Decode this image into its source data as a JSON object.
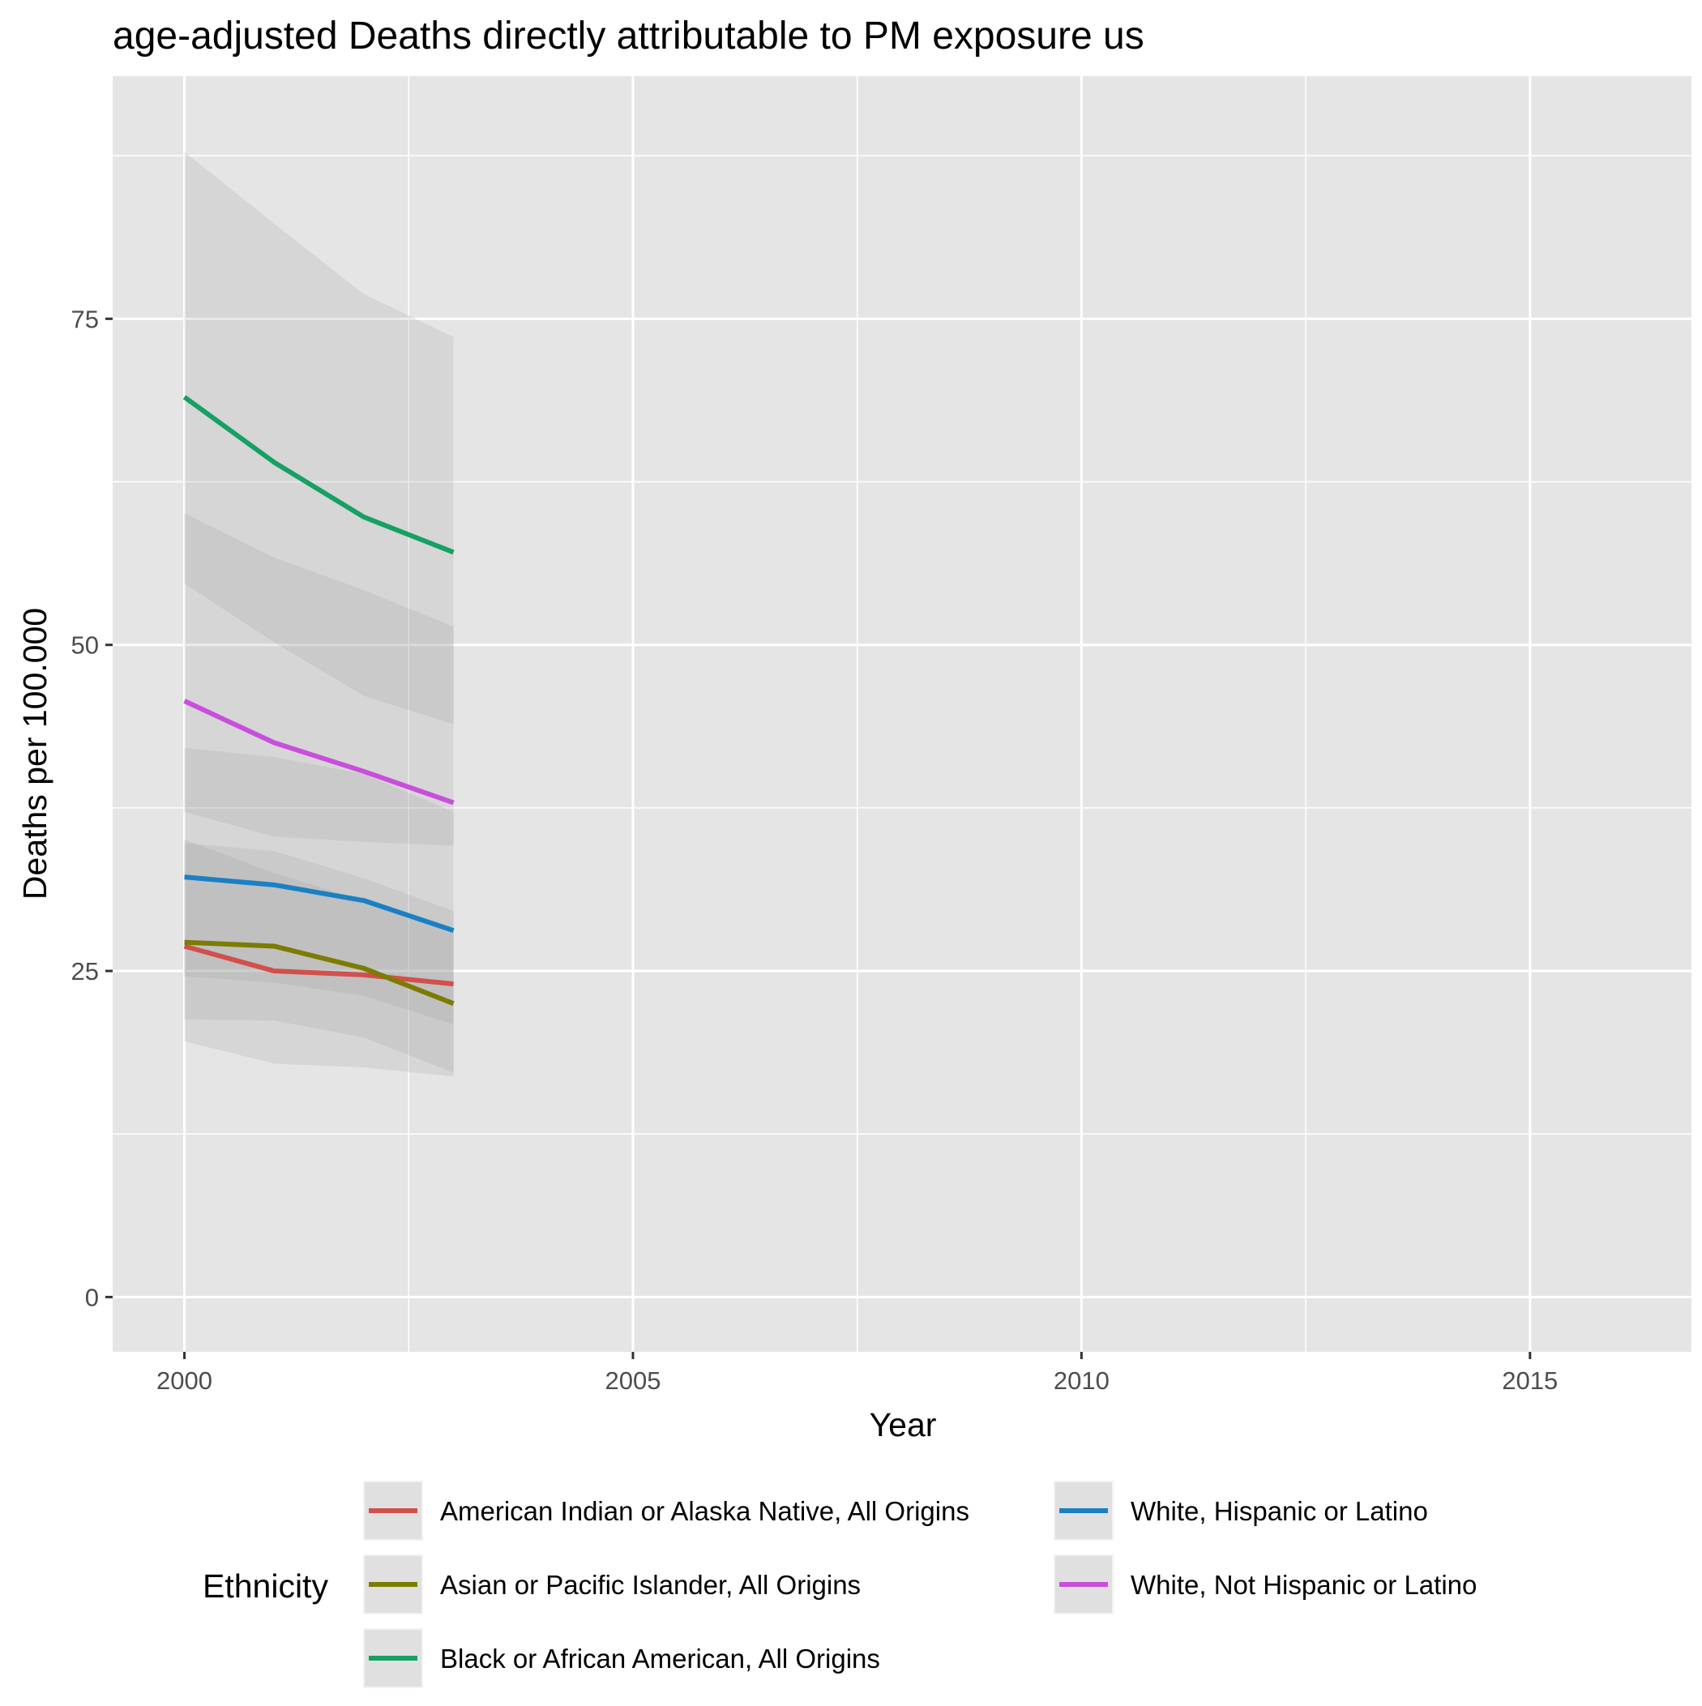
{
  "chart_data": {
    "type": "line",
    "title": "age-adjusted Deaths directly attributable to PM exposure us",
    "xlabel": "Year",
    "ylabel": "Deaths per 100.000",
    "xlim": [
      1999.2,
      2016.8
    ],
    "ylim": [
      -4.2,
      93.6
    ],
    "x_ticks": [
      2000,
      2005,
      2010,
      2015
    ],
    "x_tick_labels": [
      "2000",
      "2005",
      "2010",
      "2015"
    ],
    "y_ticks": [
      0,
      25,
      50,
      75
    ],
    "y_tick_labels": [
      "0",
      "25",
      "50",
      "75"
    ],
    "grid": true,
    "legend": {
      "title": "Ethnicity",
      "position": "bottom",
      "entries": [
        "American Indian or Alaska Native, All Origins",
        "Asian or Pacific Islander, All Origins",
        "Black or African American, All Origins",
        "White, Hispanic or Latino",
        "White, Not Hispanic or Latino"
      ]
    },
    "x": [
      2000,
      2001,
      2002,
      2003
    ],
    "series": [
      {
        "name": "American Indian or Alaska Native, All Origins",
        "color": "#D2504B",
        "values": [
          26.9,
          25.0,
          24.7,
          24.0
        ],
        "lower": [
          19.6,
          17.9,
          17.6,
          16.9
        ],
        "upper": [
          34.8,
          34.2,
          32.1,
          29.6
        ]
      },
      {
        "name": "Asian or Pacific Islander, All Origins",
        "color": "#7C7C00",
        "values": [
          27.2,
          26.9,
          25.2,
          22.5
        ],
        "lower": [
          21.3,
          21.2,
          19.9,
          17.2
        ],
        "upper": [
          35.1,
          32.5,
          30.4,
          28.1
        ]
      },
      {
        "name": "Black or African American, All Origins",
        "color": "#16A064",
        "values": [
          69.0,
          64.0,
          59.8,
          57.1
        ],
        "lower": [
          54.7,
          50.2,
          46.1,
          43.9
        ],
        "upper": [
          87.8,
          82.3,
          76.9,
          73.6
        ]
      },
      {
        "name": "White, Hispanic or Latino",
        "color": "#1A80C4",
        "values": [
          32.2,
          31.6,
          30.4,
          28.1
        ],
        "lower": [
          24.6,
          24.1,
          23.1,
          20.9
        ],
        "upper": [
          42.1,
          41.4,
          40.1,
          37.2
        ]
      },
      {
        "name": "White, Not Hispanic or Latino",
        "color": "#C84FDB",
        "values": [
          45.7,
          42.5,
          40.3,
          37.9
        ],
        "lower": [
          37.2,
          35.3,
          34.9,
          34.6
        ],
        "upper": [
          60.1,
          56.7,
          54.2,
          51.4
        ]
      }
    ]
  }
}
